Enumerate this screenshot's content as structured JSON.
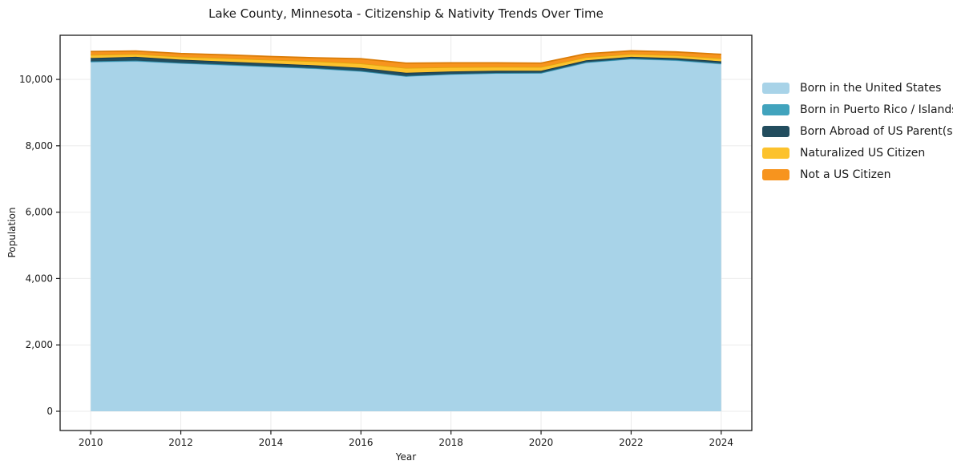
{
  "page": {
    "background": "#ffffff"
  },
  "chart_data": {
    "type": "area",
    "stacked": true,
    "title": "Lake County, Minnesota - Citizenship & Nativity Trends Over Time",
    "xlabel": "Year",
    "ylabel": "Population",
    "x": [
      2010,
      2011,
      2012,
      2013,
      2014,
      2015,
      2016,
      2017,
      2018,
      2019,
      2020,
      2021,
      2022,
      2023,
      2024
    ],
    "series": [
      {
        "name": "Born in the United States",
        "color": "#a8d3e8",
        "edge_color": "#76b4d6",
        "values": [
          10530,
          10555,
          10490,
          10440,
          10385,
          10330,
          10250,
          10100,
          10160,
          10190,
          10195,
          10510,
          10620,
          10575,
          10470
        ]
      },
      {
        "name": "Born in Puerto Rico / Islands",
        "color": "#41a3bd",
        "edge_color": "#2e8ba5",
        "values": [
          15,
          15,
          10,
          10,
          10,
          10,
          8,
          5,
          5,
          5,
          5,
          10,
          10,
          12,
          15
        ]
      },
      {
        "name": "Born Abroad of US Parent(s)",
        "color": "#224d5e",
        "edge_color": "#17384a",
        "values": [
          100,
          110,
          95,
          90,
          85,
          85,
          90,
          95,
          75,
          65,
          60,
          55,
          50,
          55,
          60
        ]
      },
      {
        "name": "Naturalized US Citizen",
        "color": "#fcc22d",
        "edge_color": "#e2a50f",
        "values": [
          95,
          85,
          90,
          100,
          110,
          120,
          135,
          145,
          130,
          120,
          115,
          95,
          85,
          85,
          90
        ]
      },
      {
        "name": "Not a US Citizen",
        "color": "#f7941e",
        "edge_color": "#da7c08",
        "values": [
          100,
          90,
          95,
          100,
          100,
          105,
          140,
          145,
          130,
          120,
          115,
          105,
          95,
          100,
          120
        ]
      }
    ],
    "xlim": [
      2009.32,
      2024.68
    ],
    "ylim": [
      -580,
      11330
    ],
    "grid": true,
    "grid_color": "#ebebeb",
    "spine_color": "#1a1a1a",
    "tick_color": "#1a1a1a",
    "text_color": "#1a1a1a",
    "legend_position": "right",
    "xticks": {
      "values": [
        2010,
        2012,
        2014,
        2016,
        2018,
        2020,
        2022,
        2024
      ],
      "labels": [
        "2010",
        "2012",
        "2014",
        "2016",
        "2018",
        "2020",
        "2022",
        "2024"
      ]
    },
    "yticks": {
      "values": [
        0,
        2000,
        4000,
        6000,
        8000,
        10000
      ],
      "labels": [
        "0",
        "2,000",
        "4,000",
        "6,000",
        "8,000",
        "10,000"
      ]
    }
  }
}
